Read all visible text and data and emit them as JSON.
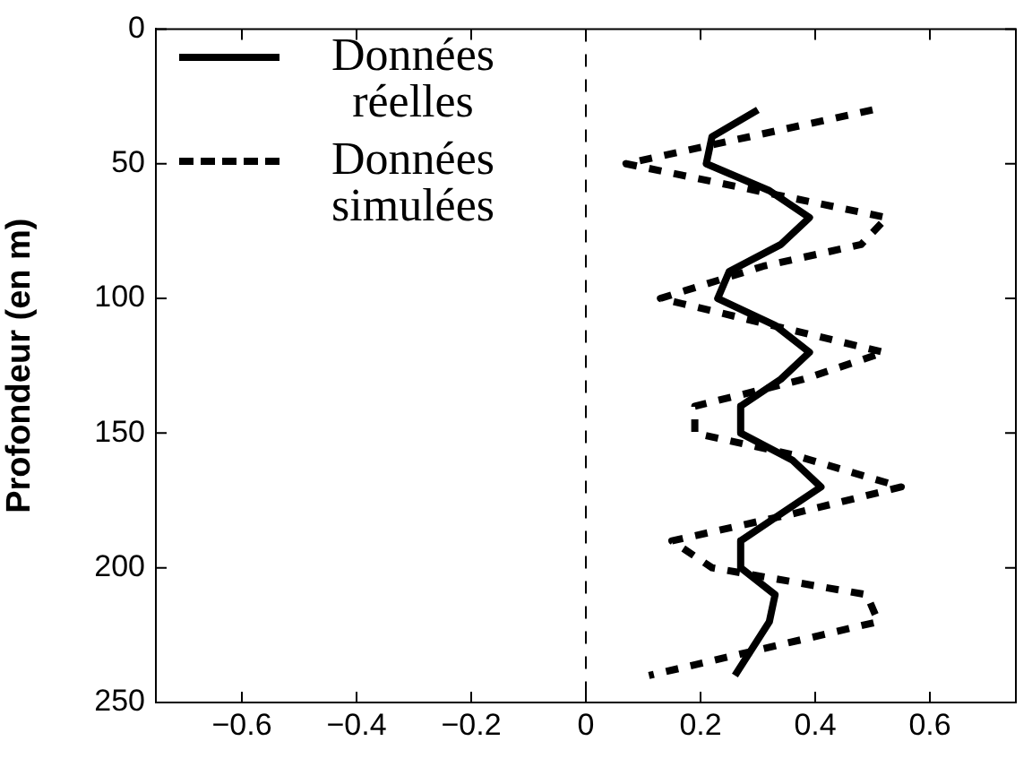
{
  "chart_data": {
    "type": "line",
    "ylabel": "Profondeur (en m)",
    "xlim": [
      -0.75,
      0.75
    ],
    "ylim": [
      250,
      0
    ],
    "xticks": [
      {
        "value": -0.6,
        "label": "−0.6"
      },
      {
        "value": -0.4,
        "label": "−0.4"
      },
      {
        "value": -0.2,
        "label": "−0.2"
      },
      0,
      0.2,
      0.4,
      0.6
    ],
    "yticks": [
      0,
      50,
      100,
      150,
      200,
      250
    ],
    "legend": "top left",
    "marker": "none",
    "ref_lines": [
      {
        "axis": "x",
        "value": 0,
        "line_style": "dashed",
        "color": "#000000"
      }
    ],
    "series": [
      {
        "name": "Données réelles",
        "color": "#000000",
        "line_style": "solid",
        "x": [
          0.3,
          0.22,
          0.21,
          0.32,
          0.39,
          0.34,
          0.25,
          0.23,
          0.33,
          0.39,
          0.34,
          0.27,
          0.27,
          0.36,
          0.41,
          0.34,
          0.27,
          0.27,
          0.33,
          0.32,
          0.26
        ],
        "values": [
          30,
          40,
          50,
          60,
          70,
          80,
          90,
          100,
          110,
          120,
          130,
          140,
          150,
          160,
          170,
          180,
          190,
          200,
          210,
          220,
          240
        ]
      },
      {
        "name": "Données simulées",
        "color": "#000000",
        "line_style": "dashed",
        "x": [
          0.5,
          0.07,
          0.525,
          0.48,
          0.31,
          0.13,
          0.52,
          0.38,
          0.19,
          0.19,
          0.36,
          0.55,
          0.36,
          0.15,
          0.22,
          0.49,
          0.51,
          0.11
        ],
        "values": [
          30,
          50,
          70,
          80,
          88,
          100,
          120,
          130,
          140,
          150,
          158,
          170,
          180,
          190,
          200,
          210,
          220,
          240
        ]
      }
    ]
  }
}
